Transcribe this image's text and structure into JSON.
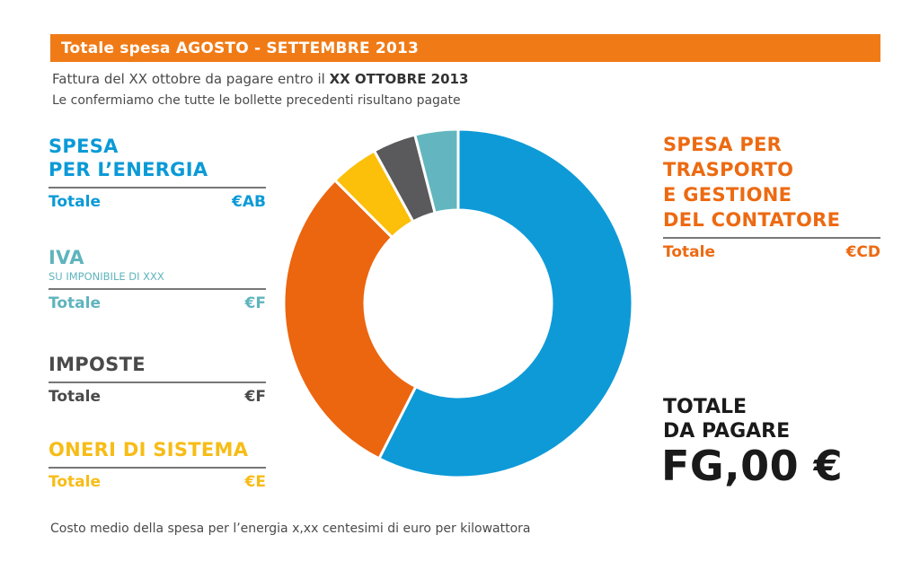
{
  "header": {
    "title": "Totale spesa AGOSTO - SETTEMBRE 2013"
  },
  "intro": {
    "line1_prefix": "Fattura del XX ottobre da pagare entro il ",
    "line1_bold": "XX OTTOBRE 2013",
    "line2": "Le confermiamo che tutte le bollette precedenti risultano pagate"
  },
  "items": {
    "energia": {
      "title_l1": "SPESA",
      "title_l2": "PER L’ENERGIA",
      "total_label": "Totale",
      "total_value": "€AB",
      "color": "#0b9ad6"
    },
    "iva": {
      "title": "IVA",
      "sub": "SU IMPONIBILE DI XXX",
      "total_label": "Totale",
      "total_value": "€F",
      "color": "#5fb4bd"
    },
    "imposte": {
      "title": "IMPOSTE",
      "total_label": "Totale",
      "total_value": "€F",
      "color": "#4a4a4a"
    },
    "oneri": {
      "title": "ONERI DI SISTEMA",
      "total_label": "Totale",
      "total_value": "€E",
      "color": "#f7bc16"
    },
    "trasporto": {
      "title_l1": "SPESA PER",
      "title_l2": "TRASPORTO",
      "title_l3": "E GESTIONE",
      "title_l4": "DEL CONTATORE",
      "total_label": "Totale",
      "total_value": "€CD",
      "color": "#ec6a12"
    }
  },
  "totale": {
    "label_l1": "TOTALE",
    "label_l2": "DA PAGARE",
    "value": "FG,00 €"
  },
  "footer": {
    "text": "Costo medio della spesa per l’energia x,xx centesimi di euro per kilowattora"
  },
  "chart_data": {
    "type": "pie",
    "style": "donut",
    "start": "top",
    "direction": "clockwise",
    "slices": [
      {
        "key": "energia",
        "value": 57.5,
        "color": "#0e9ad7"
      },
      {
        "key": "trasporto",
        "value": 30.0,
        "color": "#ec650f"
      },
      {
        "key": "oneri",
        "value": 4.5,
        "color": "#fcbf0a"
      },
      {
        "key": "imposte",
        "value": 4.0,
        "color": "#5a5a5c"
      },
      {
        "key": "iva",
        "value": 4.0,
        "color": "#63b6bf"
      }
    ]
  }
}
